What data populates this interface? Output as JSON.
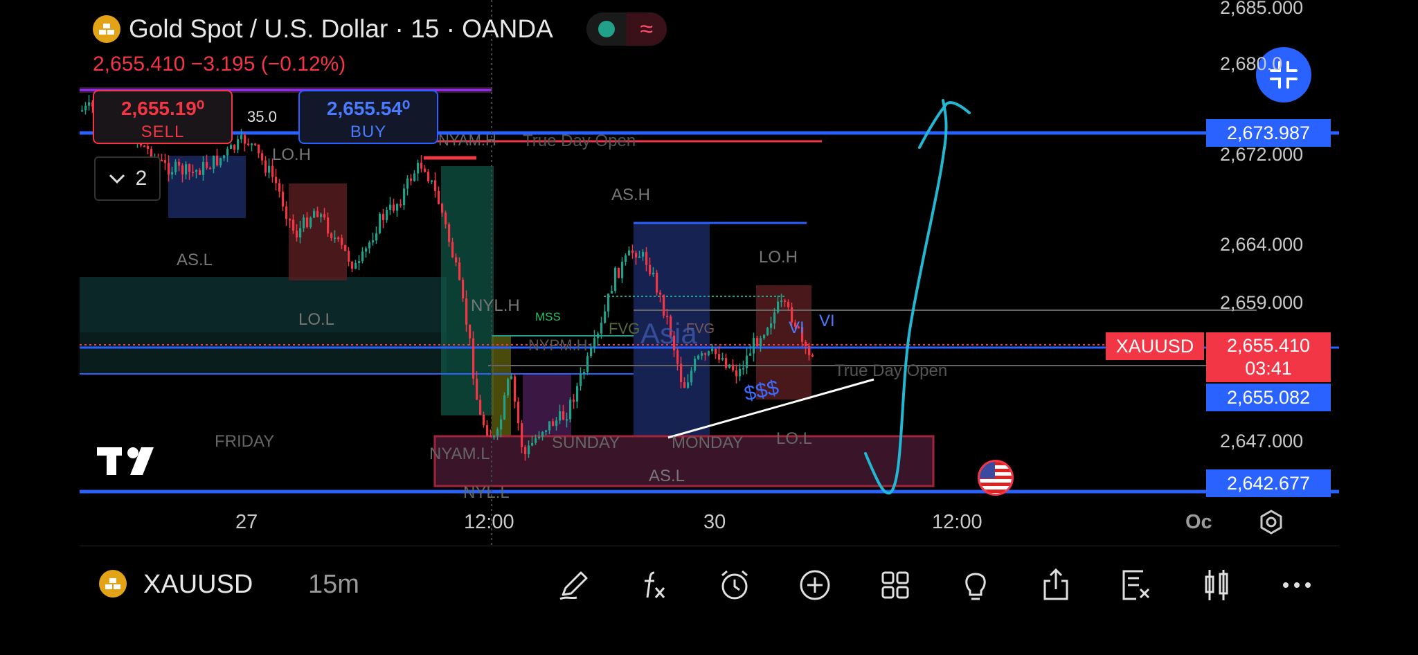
{
  "header": {
    "symbol_title": "Gold Spot / U.S. Dollar · 15 · OANDA",
    "price_change": "2,655.410  −3.195 (−0.12%)",
    "wave_glyph": "≈"
  },
  "trade": {
    "sell_price": "2,655.19⁰",
    "sell_label": "SELL",
    "buy_price": "2,655.54⁰",
    "buy_label": "BUY",
    "spread": "35.0"
  },
  "layers": {
    "count": "2"
  },
  "price_axis": {
    "labels": [
      "2,685.000",
      "2,68‌0.0",
      "2,672.000",
      "2,664.000",
      "2,659.000",
      "2,647.000"
    ],
    "tag_top": "2,673.987",
    "tag_mid": "2,655.082",
    "tag_bottom": "2,642.677",
    "current_price": "2,655.410",
    "countdown": "03:41",
    "symbol_tag": "XAUUSD"
  },
  "time_axis": {
    "labels": [
      "27",
      "12:00",
      "30",
      "12:00",
      "Oc"
    ]
  },
  "annotations": {
    "as_h_1": "AS.H",
    "lo_h_1": "LO.H",
    "as_l_1": "AS.L",
    "lo_l_1": "LO.L",
    "nyl_h": "NYL.H",
    "mss": "MSS",
    "fvg_1": "FVG",
    "fvg_2": "FVG",
    "asia": "Asia",
    "nypm": "NYPM.H",
    "as_h_2": "AS.H",
    "lo_h_2": "LO.H",
    "vi_1": "VI",
    "vi_2": "VI",
    "true_day_open_1": "True Day Open",
    "true_day_open_2": "True Day Open",
    "dollars": "$$$",
    "friday": "FRIDAY",
    "sunday": "SUNDAY",
    "monday": "MONDAY",
    "nyam_l": "NYAM.L",
    "nyl_l": "NYL.L",
    "as_l_2": "AS.L",
    "lo_l_2": "LO.L",
    "nyam_h": "NYAM.H"
  },
  "bottom_bar": {
    "symbol": "XAUUSD",
    "timeframe": "15m"
  },
  "colors": {
    "up": "#22a18a",
    "down": "#f23645",
    "accent": "#2962ff",
    "draw": "#22b8d4"
  },
  "icons": [
    "pen-icon",
    "fx-indicator-icon",
    "alarm-clock-icon",
    "add-circle-icon",
    "grid-icon",
    "lightbulb-icon",
    "share-icon",
    "trade-ticket-icon",
    "candles-icon",
    "more-icon"
  ]
}
